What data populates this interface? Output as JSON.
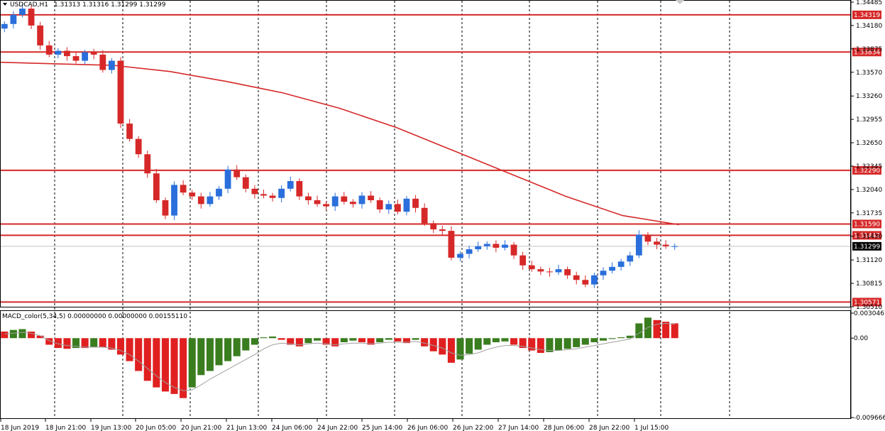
{
  "header": {
    "symbol": "USDCAD,H1",
    "ohlc": "1.31313 1.31316 1.31299 1.31299",
    "macd": "MACD_color(5,34,5) 0.00000000 0.00000000 0.00155110"
  },
  "colors": {
    "bull": "#2a6fdb",
    "bear": "#d62828",
    "line": "#d62828",
    "macd_pos": "#3a7d1f",
    "macd_neg": "#e02020",
    "grid": "#000000"
  },
  "chart_data": {
    "type": "candlestick",
    "price_axis": {
      "range": [
        1.3051,
        1.34485
      ],
      "ticks": [
        "1.34485",
        "1.34180",
        "1.33875",
        "1.33570",
        "1.33260",
        "1.32955",
        "1.32650",
        "1.32345",
        "1.32040",
        "1.31735",
        "1.31430",
        "1.31120",
        "1.30815",
        "1.30510"
      ]
    },
    "levels": [
      {
        "value": 1.34319,
        "label": "1.34319"
      },
      {
        "value": 1.33834,
        "label": "1.33834"
      },
      {
        "value": 1.3229,
        "label": "1.32290"
      },
      {
        "value": 1.3159,
        "label": "1.31590"
      },
      {
        "value": 1.31442,
        "label": "1.31442"
      },
      {
        "value": 1.30571,
        "label": "1.30571"
      }
    ],
    "current_price": {
      "value": 1.31299,
      "label": "1.31299"
    },
    "time_labels": [
      "18 Jun 2019",
      "18 Jun 21:00",
      "19 Jun 13:00",
      "20 Jun 05:00",
      "20 Jun 21:00",
      "21 Jun 13:00",
      "24 Jun 06:00",
      "24 Jun 22:00",
      "25 Jun 14:00",
      "26 Jun 06:00",
      "26 Jun 22:00",
      "27 Jun 14:00",
      "28 Jun 06:00",
      "28 Jun 22:00",
      "1 Jul 15:00"
    ],
    "moving_average": [
      1.337,
      1.3368,
      1.3366,
      1.3358,
      1.3345,
      1.333,
      1.331,
      1.3285,
      1.3255,
      1.3225,
      1.3195,
      1.317,
      1.3158
    ],
    "closes": [
      1.342,
      1.3432,
      1.344,
      1.3418,
      1.3392,
      1.338,
      1.3385,
      1.3378,
      1.3372,
      1.3383,
      1.338,
      1.336,
      1.3372,
      1.329,
      1.327,
      1.325,
      1.3225,
      1.319,
      1.317,
      1.321,
      1.32,
      1.3195,
      1.3185,
      1.3195,
      1.3205,
      1.323,
      1.322,
      1.3205,
      1.3198,
      1.3196,
      1.3193,
      1.3205,
      1.3215,
      1.3195,
      1.319,
      1.3185,
      1.3182,
      1.3195,
      1.3188,
      1.3185,
      1.3196,
      1.319,
      1.3178,
      1.3185,
      1.3175,
      1.3192,
      1.318,
      1.316,
      1.3152,
      1.315,
      1.3115,
      1.312,
      1.3126,
      1.313,
      1.3133,
      1.3128,
      1.3132,
      1.3118,
      1.3105,
      1.31,
      1.3097,
      1.3096,
      1.31,
      1.3092,
      1.3086,
      1.308,
      1.3092,
      1.3098,
      1.3103,
      1.311,
      1.3118,
      1.3145,
      1.3136,
      1.3132,
      1.313,
      1.313
    ],
    "macd": {
      "y_ticks": [
        "0.0030467",
        "0.00",
        "-0.0096663"
      ],
      "range": [
        -0.0096663,
        0.0030467
      ],
      "values": [
        0.0008,
        0.001,
        0.0011,
        0.0008,
        0.0003,
        -0.0008,
        -0.0012,
        -0.0013,
        -0.0012,
        -0.0012,
        -0.0011,
        -0.0011,
        -0.0014,
        -0.002,
        -0.0028,
        -0.004,
        -0.0052,
        -0.006,
        -0.0065,
        -0.0068,
        -0.0073,
        -0.006,
        -0.0045,
        -0.004,
        -0.0033,
        -0.0028,
        -0.0022,
        -0.0015,
        -0.0008,
        0.0001,
        0.0002,
        -0.0002,
        -0.0008,
        -0.001,
        -0.0006,
        -0.0003,
        -0.0008,
        -0.001,
        -0.0005,
        -0.0003,
        -0.0005,
        -0.0008,
        -0.0005,
        -0.0002,
        -0.0004,
        -0.0006,
        -0.0002,
        -0.001,
        -0.0016,
        -0.002,
        -0.003,
        -0.0026,
        -0.0019,
        -0.0014,
        -0.0008,
        -0.0005,
        -0.0004,
        -0.0008,
        -0.0012,
        -0.0015,
        -0.0018,
        -0.0017,
        -0.0015,
        -0.0013,
        -0.0011,
        -0.0008,
        -0.0005,
        -0.0003,
        -0.0001,
        0.0001,
        0.0003,
        0.0018,
        0.0025,
        0.0022,
        0.002,
        0.0018
      ],
      "signal": [
        0.0005,
        0.0006,
        0.0007,
        0.0006,
        0.0003,
        -0.0003,
        -0.0007,
        -0.0009,
        -0.001,
        -0.0011,
        -0.0011,
        -0.0011,
        -0.0012,
        -0.0015,
        -0.002,
        -0.0028,
        -0.0037,
        -0.0046,
        -0.0054,
        -0.006,
        -0.0064,
        -0.0063,
        -0.0057,
        -0.005,
        -0.0044,
        -0.0038,
        -0.0032,
        -0.0026,
        -0.002,
        -0.0013,
        -0.0008,
        -0.0006,
        -0.0007,
        -0.0008,
        -0.0007,
        -0.0006,
        -0.0007,
        -0.0008,
        -0.0007,
        -0.0006,
        -0.0006,
        -0.0007,
        -0.0006,
        -0.0005,
        -0.0005,
        -0.0005,
        -0.0004,
        -0.0006,
        -0.0009,
        -0.0012,
        -0.0018,
        -0.0021,
        -0.002,
        -0.0018,
        -0.0014,
        -0.0011,
        -0.0009,
        -0.0009,
        -0.001,
        -0.0012,
        -0.0014,
        -0.0015,
        -0.0015,
        -0.0014,
        -0.0013,
        -0.0011,
        -0.0009,
        -0.0007,
        -0.0005,
        -0.0003,
        -0.0001,
        0.0006,
        0.0013,
        0.0017,
        0.0018,
        0.0017
      ]
    }
  }
}
